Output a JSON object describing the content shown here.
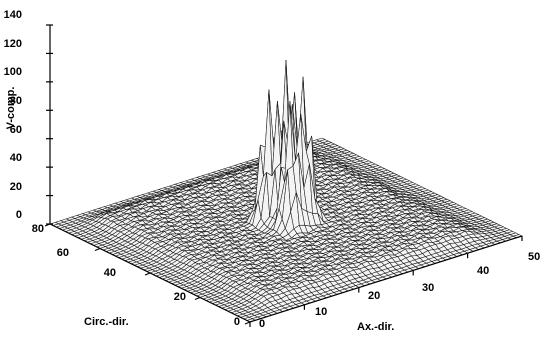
{
  "chart_data": {
    "type": "surface",
    "title": "",
    "zlabel": "V-comp.",
    "xlabel": "Ax.-dir.",
    "ylabel": "Circ.-dir.",
    "zlim": [
      0,
      140
    ],
    "xlim": [
      0,
      50
    ],
    "ylim": [
      0,
      80
    ],
    "z_ticks": [
      "0",
      "20",
      "40",
      "60",
      "80",
      "100",
      "120",
      "140"
    ],
    "x_ticks": [
      "0",
      "10",
      "20",
      "30",
      "40",
      "50"
    ],
    "y_ticks": [
      "0",
      "20",
      "40",
      "60",
      "80"
    ],
    "grid": false,
    "surface": {
      "base_level": 6,
      "plateau": {
        "x_range": [
          5,
          45
        ],
        "y_range": [
          5,
          75
        ],
        "height": 6
      },
      "peaks": [
        {
          "x": 25,
          "y": 40,
          "height": 105
        },
        {
          "x": 23,
          "y": 43,
          "height": 95
        },
        {
          "x": 27,
          "y": 37,
          "height": 100
        },
        {
          "x": 24,
          "y": 36,
          "height": 88
        },
        {
          "x": 26,
          "y": 45,
          "height": 82
        }
      ]
    }
  }
}
